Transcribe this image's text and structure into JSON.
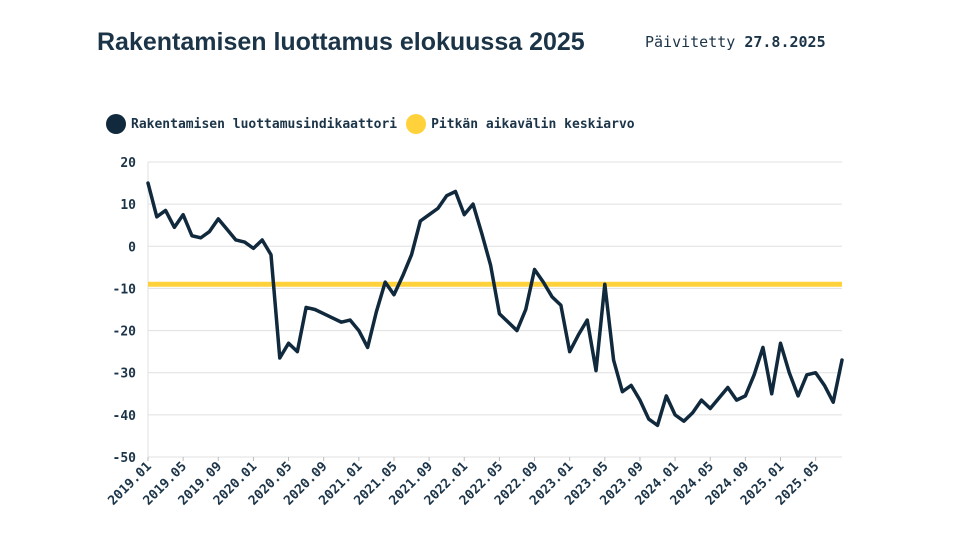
{
  "header": {
    "title": "Rakentamisen luottamus elokuussa 2025",
    "updated_label": "Päivitetty",
    "updated_date": "27.8.2025"
  },
  "colors": {
    "series": "#10293d",
    "average": "#ffd23c",
    "grid": "#e0e0e0",
    "text": "#1c3448"
  },
  "chart_data": {
    "type": "line",
    "x": [
      "2019.01",
      "2019.02",
      "2019.03",
      "2019.04",
      "2019.05",
      "2019.06",
      "2019.07",
      "2019.08",
      "2019.09",
      "2019.10",
      "2019.11",
      "2019.12",
      "2020.01",
      "2020.02",
      "2020.03",
      "2020.04",
      "2020.05",
      "2020.06",
      "2020.07",
      "2020.08",
      "2020.09",
      "2020.10",
      "2020.11",
      "2020.12",
      "2021.01",
      "2021.02",
      "2021.03",
      "2021.04",
      "2021.05",
      "2021.06",
      "2021.07",
      "2021.08",
      "2021.09",
      "2021.10",
      "2021.11",
      "2021.12",
      "2022.01",
      "2022.02",
      "2022.03",
      "2022.04",
      "2022.05",
      "2022.06",
      "2022.07",
      "2022.08",
      "2022.09",
      "2022.10",
      "2022.11",
      "2022.12",
      "2023.01",
      "2023.02",
      "2023.03",
      "2023.04",
      "2023.05",
      "2023.06",
      "2023.07",
      "2023.08",
      "2023.09",
      "2023.10",
      "2023.11",
      "2023.12",
      "2024.01",
      "2024.02",
      "2024.03",
      "2024.04",
      "2024.05",
      "2024.06",
      "2024.07",
      "2024.08",
      "2024.09",
      "2024.10",
      "2024.11",
      "2024.12",
      "2025.01",
      "2025.02",
      "2025.03",
      "2025.04",
      "2025.05",
      "2025.06",
      "2025.07",
      "2025.08"
    ],
    "series": [
      {
        "name": "Rakentamisen luottamusindikaattori",
        "values": [
          15,
          7,
          8.5,
          4.5,
          7.5,
          2.5,
          2,
          3.5,
          6.5,
          4,
          1.5,
          1,
          -0.5,
          1.5,
          -2,
          -26.5,
          -23,
          -25,
          -14.5,
          -15,
          -16,
          -17,
          -18,
          -17.5,
          -20,
          -24,
          -15.5,
          -8.5,
          -11.5,
          -7,
          -2,
          6,
          7.5,
          9,
          12,
          13,
          7.5,
          10,
          3,
          -4.5,
          -16,
          -18,
          -20,
          -15,
          -5.5,
          -8.5,
          -12,
          -14,
          -25,
          -21,
          -17.5,
          -29.5,
          -9,
          -27,
          -34.5,
          -33,
          -36.5,
          -41,
          -42.5,
          -35.5,
          -40,
          -41.5,
          -39.5,
          -36.5,
          -38.5,
          -36,
          -33.5,
          -36.5,
          -35.5,
          -30.5,
          -24,
          -35,
          -23,
          -30,
          -35.5,
          -30.5,
          -30,
          -33,
          -37,
          -27
        ]
      },
      {
        "name": "Pitkän aikavälin keskiarvo",
        "constant": -9
      }
    ],
    "yticks": [
      20,
      10,
      0,
      -10,
      -20,
      -30,
      -40,
      -50
    ],
    "xtick_labels": [
      "2019.01",
      "2019.05",
      "2019.09",
      "2020.01",
      "2020.05",
      "2020.09",
      "2021.01",
      "2021.05",
      "2021.09",
      "2022.01",
      "2022.05",
      "2022.09",
      "2023.01",
      "2023.05",
      "2023.09",
      "2024.01",
      "2024.05",
      "2024.09",
      "2025.01",
      "2025.05"
    ],
    "ylim": [
      -50,
      20
    ],
    "grid": true,
    "legend_position": "top-left",
    "title": "Rakentamisen luottamus elokuussa 2025",
    "xlabel": "",
    "ylabel": ""
  }
}
